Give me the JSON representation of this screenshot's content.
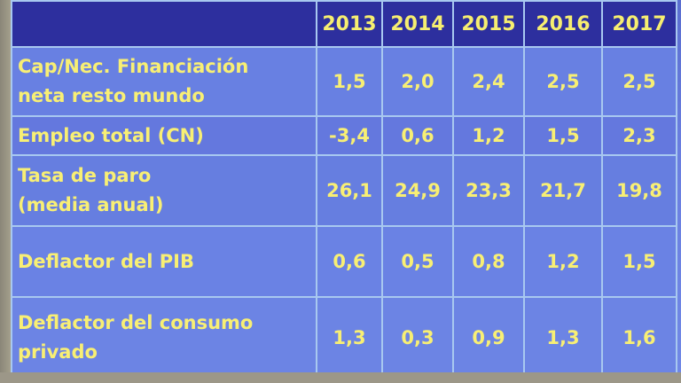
{
  "table": {
    "years": [
      "2013",
      "2014",
      "2015",
      "2016",
      "2017"
    ],
    "rows": [
      {
        "label_line1": "Cap/Nec. Financiación",
        "label_line2": "neta resto mundo",
        "values": [
          "1,5",
          "2,0",
          "2,4",
          "2,5",
          "2,5"
        ]
      },
      {
        "label_line1": "Empleo total (CN)",
        "label_line2": "",
        "values": [
          "-3,4",
          "0,6",
          "1,2",
          "1,5",
          "2,3"
        ]
      },
      {
        "label_line1": "Tasa de paro",
        "label_line2": " (media anual)",
        "values": [
          "26,1",
          "24,9",
          "23,3",
          "21,7",
          "19,8"
        ]
      },
      {
        "label_line1": "Deflactor del PIB",
        "label_line2": "",
        "values": [
          "0,6",
          "0,5",
          "0,8",
          "1,2",
          "1,5"
        ]
      },
      {
        "label_line1": "Deflactor del consumo",
        "label_line2": "privado",
        "values": [
          "1,3",
          "0,3",
          "0,9",
          "1,3",
          "1,6"
        ]
      }
    ]
  }
}
